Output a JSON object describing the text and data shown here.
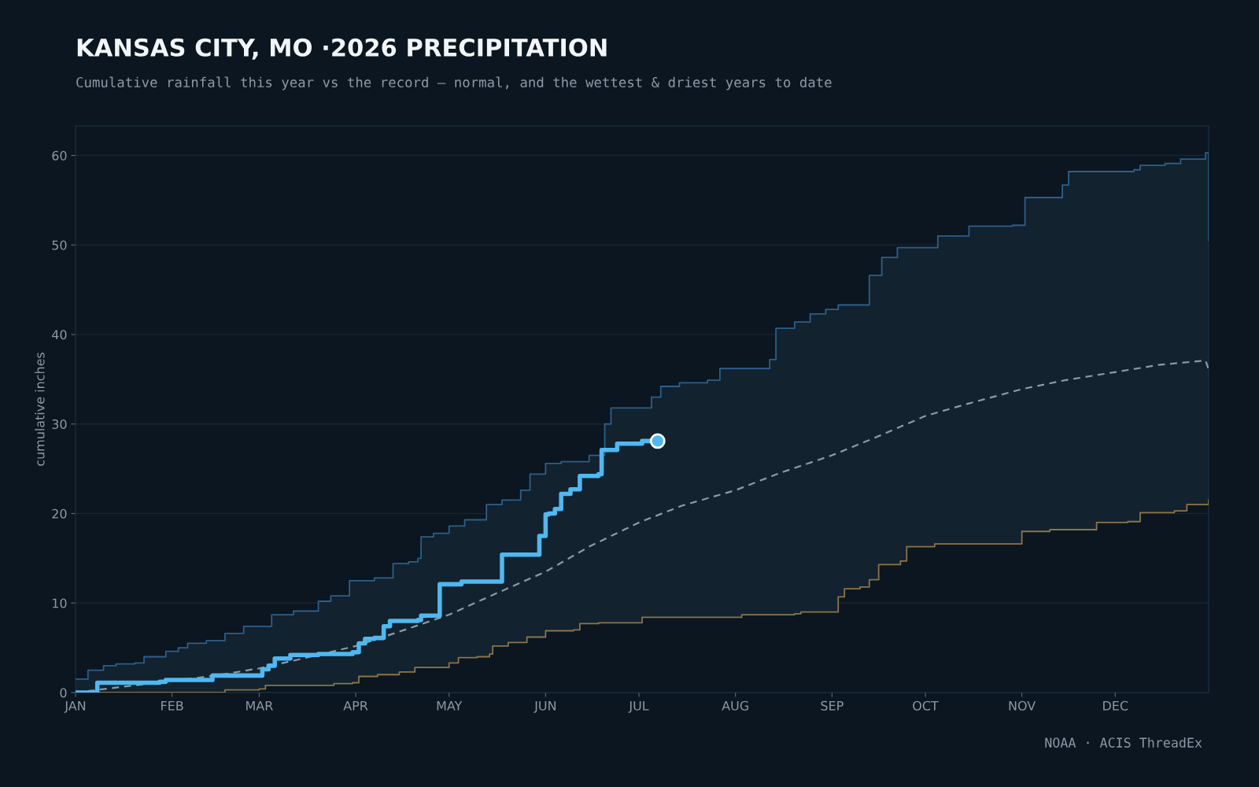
{
  "chart_data": {
    "type": "line",
    "title": "KANSAS CITY, MO ·2026 PRECIPITATION",
    "subtitle": "Cumulative rainfall this year vs the record — normal, and the wettest & driest years to date",
    "ylabel": "cumulative inches",
    "annotations": [
      "NOAA · ACIS ThreadEx"
    ],
    "xlim": [
      "2026-01-01",
      "2026-12-31"
    ],
    "ylim": [
      0,
      63.3
    ],
    "yticks": [
      0,
      10,
      20,
      30,
      40,
      50,
      60
    ],
    "xticks": [
      {
        "value": "2026-01-01",
        "label": "JAN"
      },
      {
        "value": "2026-02-01",
        "label": "FEB"
      },
      {
        "value": "2026-03-01",
        "label": "MAR"
      },
      {
        "value": "2026-04-01",
        "label": "APR"
      },
      {
        "value": "2026-05-01",
        "label": "MAY"
      },
      {
        "value": "2026-06-01",
        "label": "JUN"
      },
      {
        "value": "2026-07-01",
        "label": "JUL"
      },
      {
        "value": "2026-08-01",
        "label": "AUG"
      },
      {
        "value": "2026-09-01",
        "label": "SEP"
      },
      {
        "value": "2026-10-01",
        "label": "OCT"
      },
      {
        "value": "2026-11-01",
        "label": "NOV"
      },
      {
        "value": "2026-12-01",
        "label": "DEC"
      }
    ],
    "grid": "y",
    "legend": false,
    "series": [
      {
        "type": "step",
        "color": "#8c7548",
        "x": [
          "2026-01-01",
          "2026-01-05",
          "2026-01-10",
          "2026-01-14",
          "2026-01-20",
          "2026-01-23",
          "2026-01-30",
          "2026-02-03",
          "2026-02-06",
          "2026-02-12",
          "2026-02-18",
          "2026-02-24",
          "2026-03-01",
          "2026-03-03",
          "2026-03-05",
          "2026-03-12",
          "2026-03-20",
          "2026-03-24",
          "2026-03-25",
          "2026-03-30",
          "2026-03-31",
          "2026-04-02",
          "2026-04-07",
          "2026-04-08",
          "2026-04-13",
          "2026-04-15",
          "2026-04-18",
          "2026-04-20",
          "2026-04-21",
          "2026-04-22",
          "2026-04-26",
          "2026-05-01",
          "2026-05-04",
          "2026-05-06",
          "2026-05-10",
          "2026-05-13",
          "2026-05-14",
          "2026-05-15",
          "2026-05-18",
          "2026-05-20",
          "2026-05-24",
          "2026-05-26",
          "2026-05-27",
          "2026-06-01",
          "2026-06-06",
          "2026-06-10",
          "2026-06-12",
          "2026-06-15",
          "2026-06-18",
          "2026-06-20",
          "2026-06-22",
          "2026-07-02",
          "2026-07-05",
          "2026-07-08",
          "2026-07-14",
          "2026-07-23",
          "2026-07-27",
          "2026-08-03",
          "2026-08-12",
          "2026-08-14",
          "2026-08-20",
          "2026-08-22",
          "2026-08-25",
          "2026-08-30",
          "2026-09-03",
          "2026-09-05",
          "2026-09-10",
          "2026-09-13",
          "2026-09-16",
          "2026-09-17",
          "2026-09-22",
          "2026-09-23",
          "2026-09-25",
          "2026-10-04",
          "2026-10-05",
          "2026-10-15",
          "2026-10-29",
          "2026-11-01",
          "2026-11-02",
          "2026-11-10",
          "2026-11-14",
          "2026-11-16",
          "2026-11-25",
          "2026-12-05",
          "2026-12-07",
          "2026-12-09",
          "2026-12-17",
          "2026-12-20",
          "2026-12-22",
          "2026-12-24",
          "2026-12-30",
          "2026-12-31"
        ],
        "values": [
          0,
          0,
          0,
          0,
          0,
          0,
          0,
          0,
          0,
          0,
          0.3,
          0.3,
          0.4,
          0.8,
          0.8,
          0.8,
          0.8,
          0.8,
          1.0,
          1.0,
          1.1,
          1.8,
          1.8,
          2.0,
          2.0,
          2.3,
          2.3,
          2.8,
          2.8,
          2.8,
          2.8,
          3.3,
          3.9,
          3.9,
          4.0,
          4.0,
          4.3,
          5.2,
          5.2,
          5.6,
          5.6,
          6.2,
          6.2,
          6.9,
          6.9,
          7.0,
          7.7,
          7.7,
          7.8,
          7.8,
          7.8,
          8.4,
          8.4,
          8.4,
          8.4,
          8.4,
          8.4,
          8.7,
          8.7,
          8.7,
          8.8,
          9.0,
          9.0,
          9.0,
          10.7,
          11.6,
          11.8,
          12.6,
          14.3,
          14.3,
          14.3,
          14.7,
          16.3,
          16.6,
          16.6,
          16.6,
          16.6,
          18.0,
          18.0,
          18.2,
          18.2,
          18.2,
          19.0,
          19.1,
          19.1,
          20.1,
          20.1,
          20.3,
          20.3,
          21.0,
          21.0,
          21.5
        ]
      },
      {
        "type": "step",
        "color": "#2c5f8a",
        "x": [
          "2026-01-01",
          "2026-01-05",
          "2026-01-10",
          "2026-01-14",
          "2026-01-20",
          "2026-01-23",
          "2026-01-30",
          "2026-02-03",
          "2026-02-06",
          "2026-02-12",
          "2026-02-18",
          "2026-02-24",
          "2026-03-01",
          "2026-03-03",
          "2026-03-05",
          "2026-03-12",
          "2026-03-20",
          "2026-03-24",
          "2026-03-25",
          "2026-03-30",
          "2026-03-31",
          "2026-04-02",
          "2026-04-07",
          "2026-04-08",
          "2026-04-13",
          "2026-04-15",
          "2026-04-18",
          "2026-04-20",
          "2026-04-21",
          "2026-04-22",
          "2026-04-26",
          "2026-05-01",
          "2026-05-04",
          "2026-05-06",
          "2026-05-10",
          "2026-05-13",
          "2026-05-14",
          "2026-05-15",
          "2026-05-18",
          "2026-05-20",
          "2026-05-24",
          "2026-05-26",
          "2026-05-27",
          "2026-06-01",
          "2026-06-06",
          "2026-06-10",
          "2026-06-12",
          "2026-06-15",
          "2026-06-18",
          "2026-06-20",
          "2026-06-22",
          "2026-07-02",
          "2026-07-05",
          "2026-07-08",
          "2026-07-14",
          "2026-07-23",
          "2026-07-27",
          "2026-08-03",
          "2026-08-12",
          "2026-08-14",
          "2026-08-20",
          "2026-08-22",
          "2026-08-25",
          "2026-08-30",
          "2026-09-03",
          "2026-09-05",
          "2026-09-10",
          "2026-09-13",
          "2026-09-16",
          "2026-09-17",
          "2026-09-22",
          "2026-09-23",
          "2026-09-25",
          "2026-10-04",
          "2026-10-05",
          "2026-10-15",
          "2026-10-29",
          "2026-11-01",
          "2026-11-02",
          "2026-11-10",
          "2026-11-14",
          "2026-11-16",
          "2026-11-25",
          "2026-12-05",
          "2026-12-07",
          "2026-12-09",
          "2026-12-17",
          "2026-12-20",
          "2026-12-22",
          "2026-12-24",
          "2026-12-30",
          "2026-12-31"
        ],
        "values": [
          1.5,
          2.5,
          3.0,
          3.2,
          3.3,
          4.0,
          4.6,
          5.0,
          5.5,
          5.8,
          6.6,
          7.4,
          7.4,
          7.4,
          8.7,
          9.1,
          10.2,
          10.8,
          10.8,
          12.5,
          12.5,
          12.5,
          12.8,
          12.8,
          14.4,
          14.4,
          14.6,
          14.6,
          15.0,
          17.4,
          17.8,
          18.6,
          18.6,
          19.3,
          19.3,
          21.0,
          21.0,
          21.0,
          21.5,
          21.5,
          22.6,
          22.6,
          24.4,
          25.6,
          25.8,
          25.8,
          25.8,
          26.5,
          26.5,
          30.0,
          31.8,
          31.8,
          33.0,
          34.2,
          34.6,
          34.9,
          36.2,
          36.2,
          37.2,
          40.7,
          41.4,
          41.4,
          42.3,
          42.8,
          43.3,
          43.3,
          43.3,
          46.6,
          46.6,
          48.6,
          49.7,
          49.7,
          49.7,
          49.7,
          51.0,
          52.1,
          52.2,
          52.2,
          55.3,
          55.3,
          56.7,
          58.2,
          58.2,
          58.2,
          58.4,
          58.9,
          59.1,
          59.1,
          59.6,
          59.6,
          60.3,
          50.5
        ],
        "lower": [
          0,
          0,
          0,
          0,
          0,
          0,
          0,
          0,
          0,
          0,
          0.3,
          0.3,
          0.4,
          0.8,
          0.8,
          0.8,
          0.8,
          0.8,
          1.0,
          1.0,
          1.1,
          1.8,
          1.8,
          2.0,
          2.0,
          2.3,
          2.3,
          2.8,
          2.8,
          2.8,
          2.8,
          3.3,
          3.9,
          3.9,
          4.0,
          4.0,
          4.3,
          5.2,
          5.2,
          5.6,
          5.6,
          6.2,
          6.2,
          6.9,
          6.9,
          7.0,
          7.7,
          7.7,
          7.8,
          7.8,
          7.8,
          8.4,
          8.4,
          8.4,
          8.4,
          8.4,
          8.4,
          8.7,
          8.7,
          8.7,
          8.8,
          9.0,
          9.0,
          9.0,
          10.7,
          11.6,
          11.8,
          12.6,
          14.3,
          14.3,
          14.3,
          14.7,
          16.3,
          16.6,
          16.6,
          16.6,
          16.6,
          18.0,
          18.0,
          18.2,
          18.2,
          18.2,
          19.0,
          19.1,
          19.1,
          20.1,
          20.1,
          20.3,
          20.3,
          21.0,
          21.0,
          21.5
        ],
        "upper": [
          1.5,
          2.5,
          3.0,
          3.2,
          3.3,
          4.0,
          4.6,
          5.0,
          5.5,
          5.8,
          6.6,
          7.4,
          7.4,
          7.4,
          8.7,
          9.1,
          10.2,
          10.8,
          10.8,
          12.5,
          12.5,
          12.5,
          12.8,
          12.8,
          14.4,
          14.4,
          14.6,
          14.6,
          15.0,
          17.4,
          17.8,
          18.6,
          18.6,
          19.3,
          19.3,
          21.0,
          21.0,
          21.0,
          21.5,
          21.5,
          22.6,
          22.6,
          24.4,
          25.6,
          25.8,
          25.8,
          25.8,
          26.5,
          26.5,
          30.0,
          31.8,
          31.8,
          33.0,
          34.2,
          34.6,
          34.9,
          36.2,
          36.2,
          37.2,
          40.7,
          41.4,
          41.4,
          42.3,
          42.8,
          43.3,
          43.3,
          43.3,
          46.6,
          46.6,
          48.6,
          49.7,
          49.7,
          49.7,
          49.7,
          51.0,
          52.1,
          52.2,
          52.2,
          55.3,
          55.3,
          56.7,
          58.2,
          58.2,
          58.2,
          58.4,
          58.9,
          59.1,
          59.1,
          59.6,
          59.6,
          60.3,
          50.5
        ]
      },
      {
        "color": "#8a9aa8",
        "line_style": "dashed",
        "x": [
          "2026-01-01",
          "2026-01-15",
          "2026-02-01",
          "2026-02-15",
          "2026-03-01",
          "2026-03-15",
          "2026-04-01",
          "2026-04-15",
          "2026-05-01",
          "2026-05-15",
          "2026-06-01",
          "2026-06-15",
          "2026-07-01",
          "2026-07-15",
          "2026-08-01",
          "2026-08-15",
          "2026-09-01",
          "2026-09-15",
          "2026-10-01",
          "2026-10-15",
          "2026-11-01",
          "2026-11-15",
          "2026-12-01",
          "2026-12-15",
          "2026-12-30",
          "2026-12-31"
        ],
        "values": [
          0,
          0.6,
          1.3,
          1.9,
          2.7,
          3.8,
          5.2,
          6.8,
          8.7,
          10.9,
          13.5,
          16.3,
          19.0,
          20.9,
          22.6,
          24.5,
          26.5,
          28.5,
          30.9,
          32.3,
          33.9,
          34.9,
          35.8,
          36.6,
          37.1,
          36.1
        ]
      },
      {
        "type": "step",
        "color": "#4fb8f0",
        "x": [
          "2026-01-01",
          "2026-01-07",
          "2026-01-08",
          "2026-01-28",
          "2026-01-30",
          "2026-02-13",
          "2026-02-14",
          "2026-02-28",
          "2026-03-02",
          "2026-03-04",
          "2026-03-06",
          "2026-03-09",
          "2026-03-11",
          "2026-03-20",
          "2026-03-31",
          "2026-04-02",
          "2026-04-04",
          "2026-04-07",
          "2026-04-10",
          "2026-04-12",
          "2026-04-21",
          "2026-04-22",
          "2026-04-25",
          "2026-04-28",
          "2026-05-04",
          "2026-05-05",
          "2026-05-16",
          "2026-05-18",
          "2026-05-28",
          "2026-05-30",
          "2026-06-01",
          "2026-06-02",
          "2026-06-04",
          "2026-06-06",
          "2026-06-09",
          "2026-06-11",
          "2026-06-12",
          "2026-06-17",
          "2026-06-18",
          "2026-06-19",
          "2026-06-22",
          "2026-06-24",
          "2026-07-01",
          "2026-07-02",
          "2026-07-07"
        ],
        "values": [
          0,
          0,
          1.1,
          1.2,
          1.4,
          1.4,
          1.9,
          1.9,
          2.6,
          3.0,
          3.8,
          3.8,
          4.2,
          4.3,
          4.5,
          5.5,
          6.0,
          6.1,
          7.4,
          8.0,
          8.1,
          8.6,
          8.6,
          12.1,
          12.1,
          12.4,
          12.4,
          15.4,
          15.4,
          17.5,
          19.9,
          20.0,
          20.5,
          22.2,
          22.7,
          22.7,
          24.2,
          24.2,
          24.4,
          27.1,
          27.1,
          27.8,
          27.8,
          28.1,
          28.1
        ]
      },
      {
        "type": "scatter",
        "color": "#4fb8f0",
        "marker": "circle",
        "x": [
          "2026-07-07"
        ],
        "values": [
          28.1
        ]
      }
    ]
  }
}
